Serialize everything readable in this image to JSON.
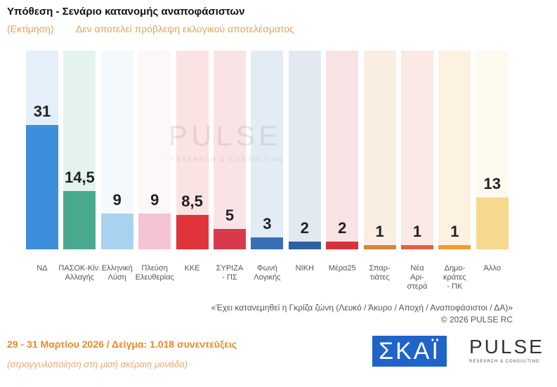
{
  "chart_data": {
    "type": "bar",
    "title": "Υπόθεση - Σενάριο κατανομής αναποφάσιστων",
    "subtitle_tag": "(Εκτίμηση)",
    "subtitle": "Δεν αποτελεί πρόβλεψη εκλογικού αποτελέσματος",
    "categories": [
      "ΝΔ",
      "ΠΑΣΟΚ-Κίν.\nΑλλαγής",
      "Ελληνική\nΛύση",
      "Πλεύση\nΕλευθερίας",
      "ΚΚΕ",
      "ΣΥΡΙΖΑ\n- ΠΣ",
      "Φωνή\nΛογικής",
      "ΝΙΚΗ",
      "Μέρα25",
      "Σπαρ-\nτιάτες",
      "Νέα\nΑρι-\nστερά",
      "Δημο-\nκράτες\n- ΠΚ",
      "Άλλο"
    ],
    "values": [
      31,
      14.5,
      9,
      9,
      8.5,
      5,
      3,
      2,
      2,
      1,
      1,
      1,
      13
    ],
    "value_labels": [
      "31",
      "14,5",
      "9",
      "9",
      "8,5",
      "5",
      "3",
      "2",
      "2",
      "1",
      "1",
      "1",
      "13"
    ],
    "colors": [
      "#3d8fdb",
      "#48a98f",
      "#a9d2f0",
      "#f3c3d4",
      "#e0343a",
      "#d93a4b",
      "#3a6fb6",
      "#2f609f",
      "#d8313c",
      "#d9843c",
      "#e2604a",
      "#f29a2e",
      "#f6d98e"
    ],
    "watermark": "PULSE",
    "watermark_sub": "RESEARCH & CONSULTING",
    "note": "«Έχει κατανεμηθεί η Γκρίζα ζώνη (Λευκό / Άκυρο / Αποχή / Αναποφάσιστοι / ΔΑ)»",
    "copyright": "©  2026  PULSE RC"
  },
  "footer": {
    "dates": "29 - 31  Μαρτίου 2026  /  Δείγμα:  1.018 συνεντεύξεις",
    "rounding": "(στρογγυλοποίηση στη μισή ακέραιη μονάδα)",
    "logo_skai": "ΣΚΑΪ",
    "logo_pulse": "PULSE",
    "logo_pulse_sub": "RESEARCH & CONSULTING"
  }
}
